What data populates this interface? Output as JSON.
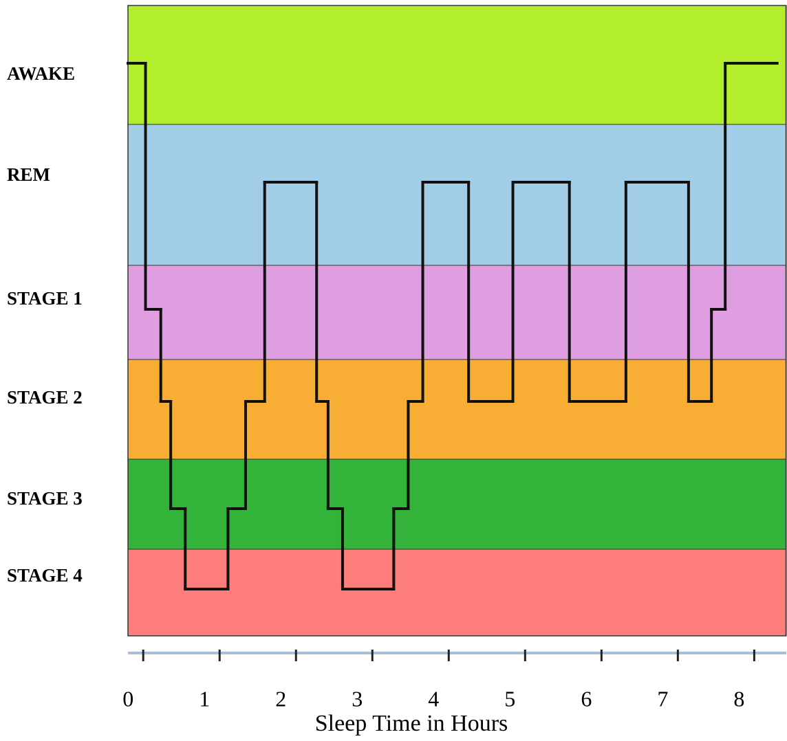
{
  "chart_data": {
    "type": "hypnogram",
    "x_label": "Sleep Time in Hours",
    "levels": [
      {
        "label": "AWAKE",
        "color": "#b2ee2c"
      },
      {
        "label": "REM",
        "color": "#a2cde7"
      },
      {
        "label": "STAGE 1",
        "color": "#df9edf"
      },
      {
        "label": "STAGE 2",
        "color": "#f8ae34"
      },
      {
        "label": "STAGE 3",
        "color": "#33b33a"
      },
      {
        "label": "STAGE 4",
        "color": "#fd7d7d"
      }
    ],
    "line_color": "#111111",
    "segments": [
      {
        "level": "AWAKE",
        "start": -0.2,
        "end": 0.03
      },
      {
        "level": "STAGE 1",
        "start": 0.03,
        "end": 0.23
      },
      {
        "level": "STAGE 2",
        "start": 0.23,
        "end": 0.36
      },
      {
        "level": "STAGE 3",
        "start": 0.36,
        "end": 0.55
      },
      {
        "level": "STAGE 4",
        "start": 0.55,
        "end": 1.11
      },
      {
        "level": "STAGE 3",
        "start": 1.11,
        "end": 1.34
      },
      {
        "level": "STAGE 2",
        "start": 1.34,
        "end": 1.59
      },
      {
        "level": "REM",
        "start": 1.59,
        "end": 2.27
      },
      {
        "level": "STAGE 2",
        "start": 2.27,
        "end": 2.42
      },
      {
        "level": "STAGE 3",
        "start": 2.42,
        "end": 2.61
      },
      {
        "level": "STAGE 4",
        "start": 2.61,
        "end": 3.28
      },
      {
        "level": "STAGE 3",
        "start": 3.28,
        "end": 3.47
      },
      {
        "level": "STAGE 2",
        "start": 3.47,
        "end": 3.66
      },
      {
        "level": "REM",
        "start": 3.66,
        "end": 4.26
      },
      {
        "level": "STAGE 2",
        "start": 4.26,
        "end": 4.84
      },
      {
        "level": "REM",
        "start": 4.84,
        "end": 5.58
      },
      {
        "level": "STAGE 2",
        "start": 5.58,
        "end": 6.32
      },
      {
        "level": "REM",
        "start": 6.32,
        "end": 7.14
      },
      {
        "level": "STAGE 2",
        "start": 7.14,
        "end": 7.44
      },
      {
        "level": "STAGE 1",
        "start": 7.44,
        "end": 7.62
      },
      {
        "level": "AWAKE",
        "start": 7.62,
        "end": 8.3
      }
    ],
    "xlim": [
      -0.2,
      8.42
    ],
    "xticks": [
      0,
      1,
      2,
      3,
      4,
      5,
      6,
      7,
      8
    ]
  }
}
